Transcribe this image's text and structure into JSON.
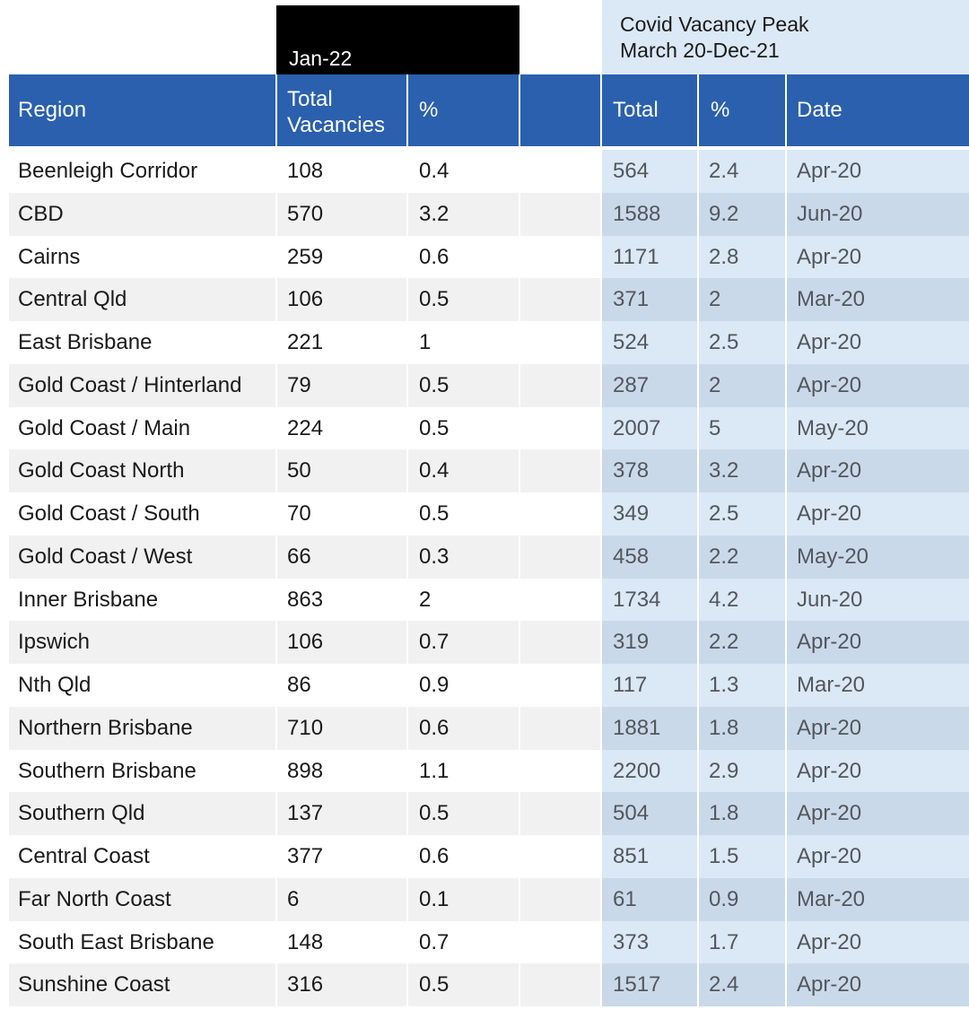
{
  "jan_header": "Jan-22",
  "peak_header": [
    "Covid Vacancy Peak",
    "March 20-Dec-21"
  ],
  "columns": {
    "region": "Region",
    "total_vacancies": [
      "Total",
      "Vacancies"
    ],
    "pct": "%",
    "blank": "",
    "peak_total": "Total",
    "peak_pct": "%",
    "peak_date": "Date"
  },
  "rows": [
    {
      "region": "Beenleigh Corridor",
      "total": "108",
      "pct": "0.4",
      "peak_total": "564",
      "peak_pct": "2.4",
      "peak_date": "Apr-20"
    },
    {
      "region": "CBD",
      "total": "570",
      "pct": "3.2",
      "peak_total": "1588",
      "peak_pct": "9.2",
      "peak_date": "Jun-20"
    },
    {
      "region": "Cairns",
      "total": "259",
      "pct": "0.6",
      "peak_total": "1171",
      "peak_pct": "2.8",
      "peak_date": "Apr-20"
    },
    {
      "region": "Central Qld",
      "total": "106",
      "pct": "0.5",
      "peak_total": "371",
      "peak_pct": "2",
      "peak_date": "Mar-20"
    },
    {
      "region": "East Brisbane",
      "total": "221",
      "pct": "1",
      "peak_total": "524",
      "peak_pct": "2.5",
      "peak_date": "Apr-20"
    },
    {
      "region": "Gold Coast / Hinterland",
      "total": "79",
      "pct": "0.5",
      "peak_total": "287",
      "peak_pct": "2",
      "peak_date": "Apr-20"
    },
    {
      "region": "Gold Coast / Main",
      "total": "224",
      "pct": "0.5",
      "peak_total": "2007",
      "peak_pct": "5",
      "peak_date": "May-20"
    },
    {
      "region": "Gold Coast North",
      "total": "50",
      "pct": "0.4",
      "peak_total": "378",
      "peak_pct": "3.2",
      "peak_date": "Apr-20"
    },
    {
      "region": "Gold Coast / South",
      "total": "70",
      "pct": "0.5",
      "peak_total": "349",
      "peak_pct": "2.5",
      "peak_date": "Apr-20"
    },
    {
      "region": "Gold Coast / West",
      "total": "66",
      "pct": "0.3",
      "peak_total": "458",
      "peak_pct": "2.2",
      "peak_date": "May-20"
    },
    {
      "region": "Inner Brisbane",
      "total": "863",
      "pct": "2",
      "peak_total": "1734",
      "peak_pct": "4.2",
      "peak_date": "Jun-20"
    },
    {
      "region": "Ipswich",
      "total": "106",
      "pct": "0.7",
      "peak_total": "319",
      "peak_pct": "2.2",
      "peak_date": "Apr-20"
    },
    {
      "region": "Nth Qld",
      "total": "86",
      "pct": "0.9",
      "peak_total": "117",
      "peak_pct": "1.3",
      "peak_date": "Mar-20"
    },
    {
      "region": "Northern Brisbane",
      "total": "710",
      "pct": "0.6",
      "peak_total": "1881",
      "peak_pct": "1.8",
      "peak_date": "Apr-20"
    },
    {
      "region": "Southern Brisbane",
      "total": "898",
      "pct": "1.1",
      "peak_total": "2200",
      "peak_pct": "2.9",
      "peak_date": "Apr-20"
    },
    {
      "region": "Southern Qld",
      "total": "137",
      "pct": "0.5",
      "peak_total": "504",
      "peak_pct": "1.8",
      "peak_date": "Apr-20"
    },
    {
      "region": "Central Coast",
      "total": "377",
      "pct": "0.6",
      "peak_total": "851",
      "peak_pct": "1.5",
      "peak_date": "Apr-20"
    },
    {
      "region": "Far North Coast",
      "total": "6",
      "pct": "0.1",
      "peak_total": "61",
      "peak_pct": "0.9",
      "peak_date": "Mar-20"
    },
    {
      "region": "South East Brisbane",
      "total": "148",
      "pct": "0.7",
      "peak_total": "373",
      "peak_pct": "1.7",
      "peak_date": "Apr-20"
    },
    {
      "region": "Sunshine Coast",
      "total": "316",
      "pct": "0.5",
      "peak_total": "1517",
      "peak_pct": "2.4",
      "peak_date": "Apr-20"
    }
  ]
}
